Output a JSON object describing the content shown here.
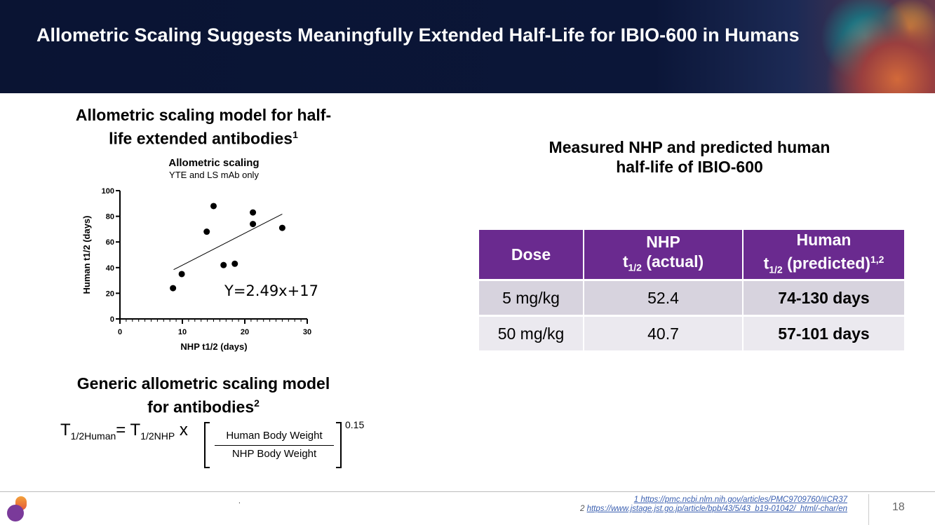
{
  "title": "Allometric Scaling Suggests Meaningfully Extended Half-Life for IBIO-600 in Humans",
  "left_heading": "Allometric scaling model for half-life extended antibodies",
  "left_heading_sup": "1",
  "chart_data": {
    "type": "scatter",
    "title": "Allometric scaling",
    "subtitle": "YTE and  LS mAb only",
    "xlabel": "NHP t1/2 (days)",
    "ylabel": "Human t1/2 (days)",
    "xlim": [
      0,
      30
    ],
    "ylim": [
      0,
      100
    ],
    "xticks": [
      "0",
      "10",
      "20",
      "30"
    ],
    "yticks": [
      "0",
      "20",
      "40",
      "60",
      "80",
      "100"
    ],
    "points": [
      [
        8.5,
        24
      ],
      [
        9.9,
        35
      ],
      [
        13.9,
        68
      ],
      [
        15,
        88
      ],
      [
        16.6,
        42
      ],
      [
        18.4,
        43
      ],
      [
        21.3,
        83
      ],
      [
        21.3,
        74
      ],
      [
        26,
        71
      ]
    ],
    "fit": {
      "slope": 2.49,
      "intercept": 17,
      "x_range": [
        8.6,
        26
      ],
      "label": "Y=2.49x+17"
    }
  },
  "generic_heading": "Generic allometric scaling model for antibodies",
  "generic_heading_sup": "2",
  "formula": {
    "lhs": "T",
    "lhs_sub": "1/2Human",
    "eq": "= T",
    "rhs_sub": "1/2NHP",
    "times": " x",
    "numerator": "Human Body Weight",
    "denominator": "NHP Body Weight",
    "exponent": "0.15"
  },
  "right_heading": "Measured NHP and predicted human half-life of IBIO-600",
  "table": {
    "headers": [
      {
        "line1": "Dose"
      },
      {
        "line1": "NHP",
        "t": "t",
        "sub": "1/2",
        "rest": " (actual)"
      },
      {
        "line1": "Human",
        "t": "t",
        "sub": "1/2",
        "rest": " (predicted)",
        "sup": "1,2"
      }
    ],
    "rows": [
      [
        "5 mg/kg",
        "52.4",
        "74-130 days"
      ],
      [
        "50 mg/kg",
        "40.7",
        "57-101 days"
      ]
    ]
  },
  "footer": {
    "ref1": "1 https://pmc.ncbi.nlm.nih.gov/articles/PMC9709760/#CR37",
    "ref2_num": "2 ",
    "ref2": "https://www.jstage.jst.go.jp/article/bpb/43/5/43_b19-01042/_html/-char/en",
    "dot": ".",
    "page": "18"
  }
}
